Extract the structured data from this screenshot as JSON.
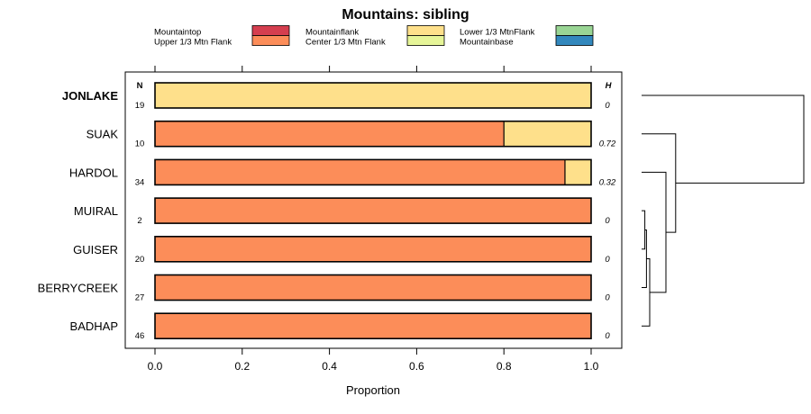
{
  "chart_data": {
    "type": "bar",
    "orientation": "horizontal",
    "stacked": true,
    "title": "Mountains: sibling",
    "xlabel": "Proportion",
    "xlim": [
      0,
      1
    ],
    "xticks": [
      "0.0",
      "0.2",
      "0.4",
      "0.6",
      "0.8",
      "1.0"
    ],
    "n_header": "N",
    "h_header": "H",
    "legend": [
      {
        "label": "Mountaintop",
        "color": "#d53e4f"
      },
      {
        "label": "Upper 1/3 Mtn Flank",
        "color": "#fc8d59"
      },
      {
        "label": "Mountainflank",
        "color": "#fee08b"
      },
      {
        "label": "Center 1/3 Mtn Flank",
        "color": "#e6f598"
      },
      {
        "label": "Lower 1/3 MtnFlank",
        "color": "#99d594"
      },
      {
        "label": "Mountainbase",
        "color": "#3288bd"
      }
    ],
    "categories": [
      {
        "name": "JONLAKE",
        "bold": true,
        "n": "19",
        "h": "0",
        "segments": [
          {
            "series": "Mountainflank",
            "value": 1.0
          }
        ]
      },
      {
        "name": "SUAK",
        "bold": false,
        "n": "10",
        "h": "0.72",
        "segments": [
          {
            "series": "Upper 1/3 Mtn Flank",
            "value": 0.8
          },
          {
            "series": "Mountainflank",
            "value": 0.2
          }
        ]
      },
      {
        "name": "HARDOL",
        "bold": false,
        "n": "34",
        "h": "0.32",
        "segments": [
          {
            "series": "Upper 1/3 Mtn Flank",
            "value": 0.94
          },
          {
            "series": "Mountainflank",
            "value": 0.06
          }
        ]
      },
      {
        "name": "MUIRAL",
        "bold": false,
        "n": "2",
        "h": "0",
        "segments": [
          {
            "series": "Upper 1/3 Mtn Flank",
            "value": 1.0
          }
        ]
      },
      {
        "name": "GUISER",
        "bold": false,
        "n": "20",
        "h": "0",
        "segments": [
          {
            "series": "Upper 1/3 Mtn Flank",
            "value": 1.0
          }
        ]
      },
      {
        "name": "BERRYCREEK",
        "bold": false,
        "n": "27",
        "h": "0",
        "segments": [
          {
            "series": "Upper 1/3 Mtn Flank",
            "value": 1.0
          }
        ]
      },
      {
        "name": "BADHAP",
        "bold": false,
        "n": "46",
        "h": "0",
        "segments": [
          {
            "series": "Upper 1/3 Mtn Flank",
            "value": 1.0
          }
        ]
      }
    ],
    "dendrogram": {
      "description": "Clustering tree at right joining rows",
      "merges": [
        {
          "a": "MUIRAL",
          "b": "GUISER",
          "height": 0.02
        },
        {
          "a": "MUIRAL+GUISER",
          "b": "BERRYCREEK",
          "height": 0.03
        },
        {
          "a": "MUIRAL+GUISER+BERRYCREEK",
          "b": "BADHAP",
          "height": 0.05
        },
        {
          "a": "HARDOL",
          "b": "MUIRAL+GUISER+BERRYCREEK+BADHAP",
          "height": 0.15
        },
        {
          "a": "SUAK",
          "b": "HARDOL+MUIRAL+GUISER+BERRYCREEK+BADHAP",
          "height": 0.21
        },
        {
          "a": "JONLAKE",
          "b": "SUAK+HARDOL+MUIRAL+GUISER+BERRYCREEK+BADHAP",
          "height": 1.0
        }
      ]
    }
  }
}
